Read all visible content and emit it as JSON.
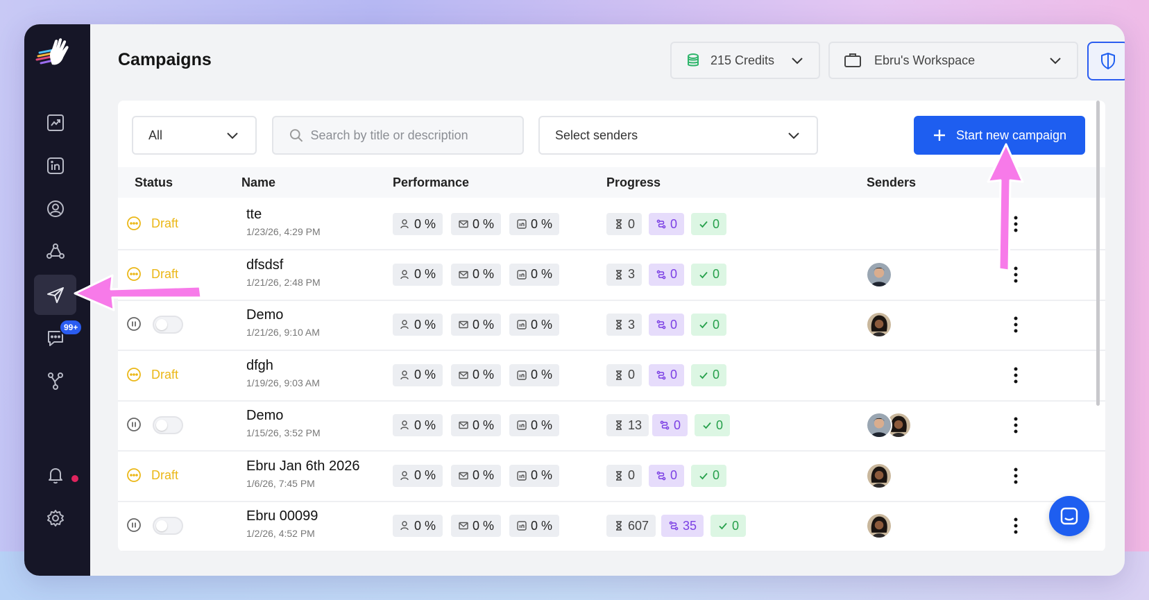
{
  "app": {
    "page_title": "Campaigns",
    "brand_color": "#1e5ef0",
    "sidebar_bg": "#161627"
  },
  "sidebar": {
    "items": [
      {
        "name": "analytics",
        "icon": "chart-trend-icon"
      },
      {
        "name": "linkedin",
        "icon": "linkedin-icon"
      },
      {
        "name": "contacts",
        "icon": "user-circle-icon"
      },
      {
        "name": "network",
        "icon": "network-icon"
      },
      {
        "name": "campaigns",
        "icon": "send-icon",
        "active": true
      },
      {
        "name": "messages",
        "icon": "chat-icon",
        "badge": "99+"
      },
      {
        "name": "integrations",
        "icon": "webhook-icon"
      },
      {
        "name": "notifications",
        "icon": "bell-icon"
      },
      {
        "name": "settings",
        "icon": "gear-icon"
      }
    ],
    "messages_badge": "99+"
  },
  "header": {
    "credits_label": "215 Credits",
    "workspace_label": "Ebru's Workspace"
  },
  "filters": {
    "status_value": "All",
    "search_placeholder": "Search by title or description",
    "senders_placeholder": "Select senders",
    "start_button": "Start new campaign"
  },
  "table": {
    "columns": {
      "status": "Status",
      "name": "Name",
      "performance": "Performance",
      "progress": "Progress",
      "senders": "Senders"
    },
    "rows": [
      {
        "status": "Draft",
        "name": "tte",
        "date": "1/23/26, 4:29 PM",
        "perf": [
          "0 %",
          "0 %",
          "0 %"
        ],
        "waiting": "0",
        "in_progress": "0",
        "done": "0",
        "senders": []
      },
      {
        "status": "Draft",
        "name": "dfsdsf",
        "date": "1/21/26, 2:48 PM",
        "perf": [
          "0 %",
          "0 %",
          "0 %"
        ],
        "waiting": "3",
        "in_progress": "0",
        "done": "0",
        "senders": [
          "man"
        ]
      },
      {
        "status": "Paused",
        "name": "Demo",
        "date": "1/21/26, 9:10 AM",
        "perf": [
          "0 %",
          "0 %",
          "0 %"
        ],
        "waiting": "3",
        "in_progress": "0",
        "done": "0",
        "senders": [
          "woman"
        ]
      },
      {
        "status": "Draft",
        "name": "dfgh",
        "date": "1/19/26, 9:03 AM",
        "perf": [
          "0 %",
          "0 %",
          "0 %"
        ],
        "waiting": "0",
        "in_progress": "0",
        "done": "0",
        "senders": []
      },
      {
        "status": "Paused",
        "name": "Demo",
        "date": "1/15/26, 3:52 PM",
        "perf": [
          "0 %",
          "0 %",
          "0 %"
        ],
        "waiting": "13",
        "in_progress": "0",
        "done": "0",
        "senders": [
          "man",
          "woman"
        ]
      },
      {
        "status": "Draft",
        "name": "Ebru Jan 6th 2026",
        "date": "1/6/26, 7:45 PM",
        "perf": [
          "0 %",
          "0 %",
          "0 %"
        ],
        "waiting": "0",
        "in_progress": "0",
        "done": "0",
        "senders": [
          "woman"
        ]
      },
      {
        "status": "Paused",
        "name": "Ebru 00099",
        "date": "1/2/26, 4:52 PM",
        "perf": [
          "0 %",
          "0 %",
          "0 %"
        ],
        "waiting": "607",
        "in_progress": "35",
        "done": "0",
        "senders": [
          "woman"
        ]
      }
    ]
  }
}
